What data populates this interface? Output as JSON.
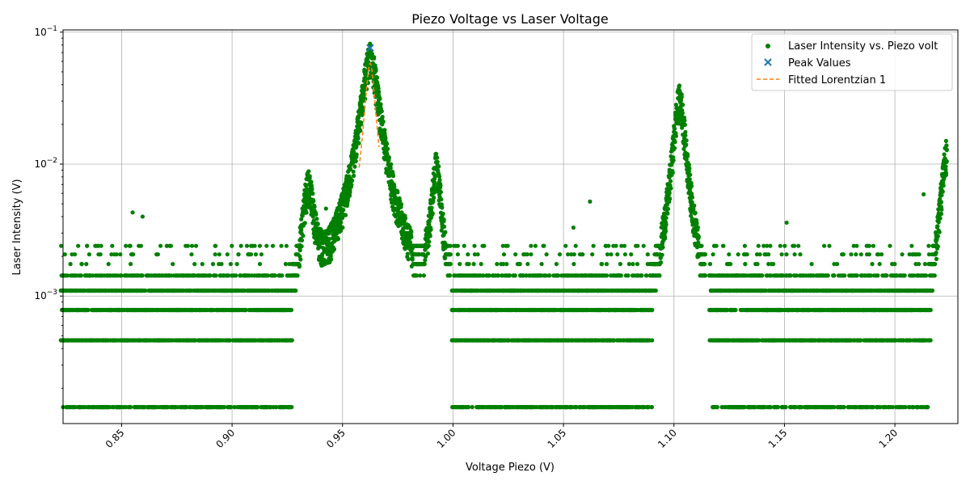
{
  "chart_data": {
    "type": "scatter",
    "title": "Piezo Voltage vs Laser Voltage",
    "xlabel": "Voltage Piezo (V)",
    "ylabel": "Laser Intensity (V)",
    "xlim": [
      0.8235,
      1.2285
    ],
    "ylim": [
      0.000108,
      0.104
    ],
    "yscale": "log",
    "grid": true,
    "legend_position": "top-right",
    "x_ticks": [
      {
        "value": 0.85,
        "label": "0.85"
      },
      {
        "value": 0.9,
        "label": "0.90"
      },
      {
        "value": 0.95,
        "label": "0.95"
      },
      {
        "value": 1.0,
        "label": "1.00"
      },
      {
        "value": 1.05,
        "label": "1.05"
      },
      {
        "value": 1.1,
        "label": "1.10"
      },
      {
        "value": 1.15,
        "label": "1.15"
      },
      {
        "value": 1.2,
        "label": "1.20"
      }
    ],
    "y_ticks": [
      {
        "value": 0.001,
        "base": "10",
        "exp": "−3"
      },
      {
        "value": 0.01,
        "base": "10",
        "exp": "−2"
      },
      {
        "value": 0.1,
        "base": "10",
        "exp": "−1"
      }
    ],
    "series": [
      {
        "name": "Laser Intensity vs. Piezo volt",
        "kind": "scatter",
        "marker": "dot",
        "color": "#008000",
        "levels": [
          0.000144,
          0.000462,
          0.000784,
          0.0011,
          0.00143,
          0.00175,
          0.00207,
          0.0024
        ],
        "x_range": [
          0.8225,
          1.2235
        ],
        "baseline_gaps": [
          [
            0.929,
            0.941
          ],
          [
            0.974,
            0.9995
          ],
          [
            1.094,
            1.116
          ]
        ],
        "peaks": [
          {
            "x0": 0.9345,
            "height": 0.0065,
            "width": 0.0025
          },
          {
            "x0": 0.9625,
            "height": 0.07,
            "width": 0.0035
          },
          {
            "x0": 0.9925,
            "height": 0.0095,
            "width": 0.002
          },
          {
            "x0": 1.1025,
            "height": 0.034,
            "width": 0.0025
          },
          {
            "x0": 1.2235,
            "height": 0.013,
            "width": 0.0025
          }
        ],
        "outliers": [
          [
            0.855,
            0.0043
          ],
          [
            0.8595,
            0.004
          ],
          [
            1.062,
            0.0052
          ],
          [
            1.151,
            0.0036
          ],
          [
            1.213,
            0.0059
          ],
          [
            0.9425,
            0.0046
          ],
          [
            1.0545,
            0.0033
          ]
        ]
      },
      {
        "name": "Peak Values",
        "kind": "marker",
        "marker": "x",
        "color": "#1f77b4",
        "points": [
          [
            0.9625,
            0.076
          ]
        ]
      },
      {
        "name": "Fitted Lorentzian 1",
        "kind": "line",
        "style": "dashed",
        "color": "#ff7f0e",
        "x0": 0.9625,
        "amplitude": 0.058,
        "gamma": 0.0022,
        "x_range": [
          0.9575,
          0.9665
        ]
      }
    ]
  }
}
